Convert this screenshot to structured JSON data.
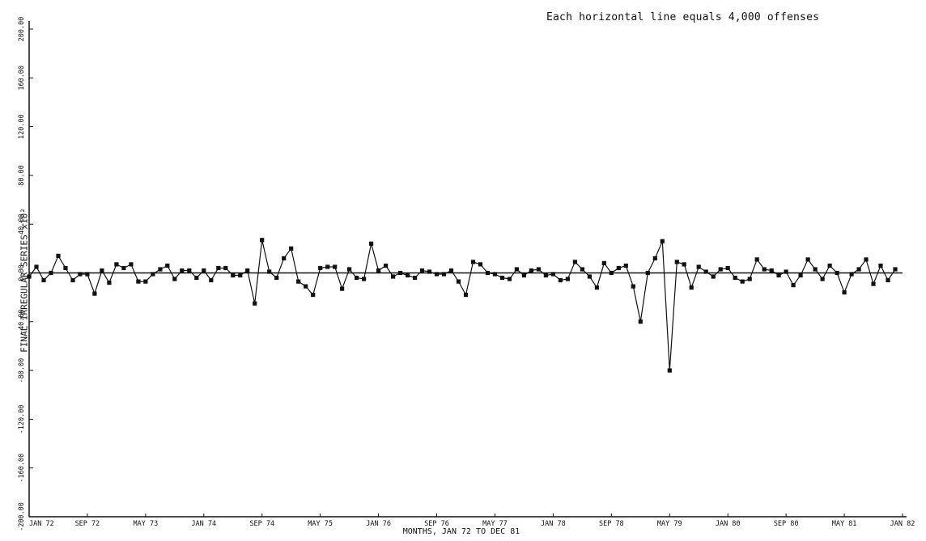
{
  "chart_data": {
    "type": "line",
    "annotation": "Each horizontal line equals 4,000 offenses",
    "ylabel": "FINAL IRREGULAR SERIES  x10²",
    "xlabel": "MONTHS, JAN 72 TO DEC 81",
    "x_ticks": [
      "JAN 72",
      "SEP 72",
      "MAY 73",
      "JAN 74",
      "SEP 74",
      "MAY 75",
      "JAN 76",
      "SEP 76",
      "MAY 77",
      "JAN 78",
      "SEP 78",
      "MAY 79",
      "JAN 80",
      "SEP 80",
      "MAY 81",
      "JAN 82"
    ],
    "y_ticks": [
      "200.00",
      "160.00",
      "120.00",
      "80.00",
      "40.00",
      "0.00",
      "-40.00",
      "-80.00",
      "-120.00",
      "-160.00",
      "-200.00"
    ],
    "ylim": [
      -200,
      200
    ],
    "x_range_months": "JAN 72 - DEC 81",
    "grid": false,
    "reference_line_y": 0,
    "values": [
      -3,
      5,
      -6,
      0,
      14,
      4,
      -6,
      -1,
      -1,
      -17,
      2,
      -8,
      7,
      4,
      7,
      -7,
      -7,
      -1,
      3,
      6,
      -5,
      2,
      2,
      -4,
      2,
      -6,
      4,
      4,
      -2,
      -2,
      2,
      -25,
      27,
      1,
      -4,
      12,
      20,
      -7,
      -11,
      -18,
      4,
      5,
      5,
      -13,
      3,
      -4,
      -5,
      24,
      2,
      6,
      -3,
      0,
      -2,
      -4,
      2,
      1,
      -1,
      -1,
      2,
      -7,
      -18,
      9,
      7,
      0,
      -1,
      -4,
      -5,
      3,
      -2,
      2,
      3,
      -2,
      -1,
      -6,
      -5,
      9,
      3,
      -3,
      -12,
      8,
      0,
      4,
      6,
      -11,
      -40,
      0,
      12,
      26,
      -80,
      9,
      7,
      -12,
      5,
      1,
      -3,
      3,
      4,
      -4,
      -7,
      -5,
      11,
      3,
      2,
      -2,
      1,
      -10,
      -2,
      11,
      3,
      -5,
      6,
      0,
      -16,
      -1,
      3,
      11,
      -9,
      6,
      -6,
      3
    ]
  }
}
